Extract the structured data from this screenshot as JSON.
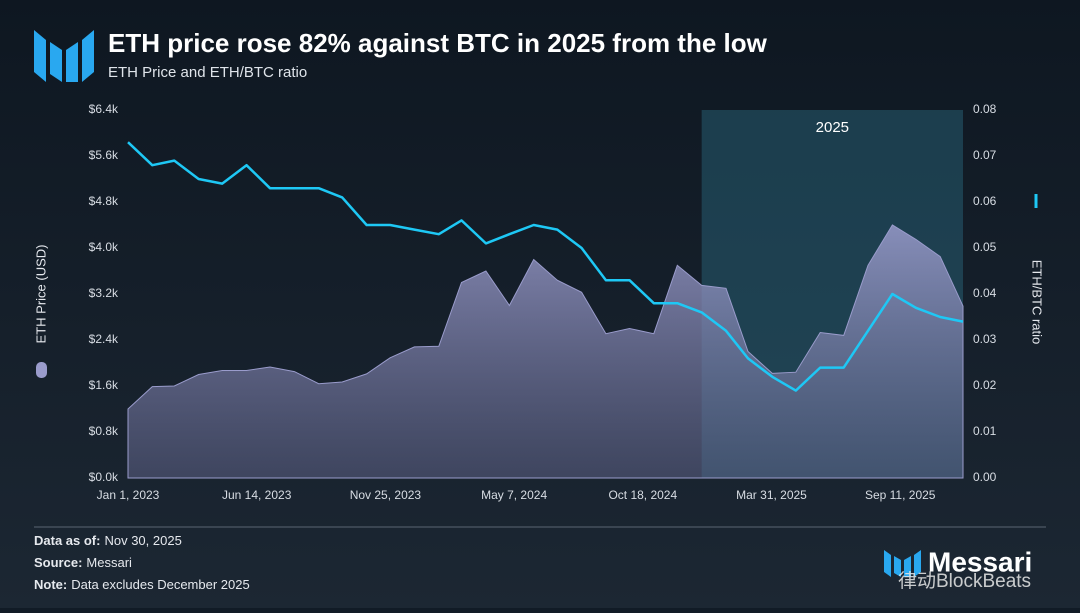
{
  "chart_data": {
    "type": "area-line",
    "title": "ETH price rose 82% against BTC in 2025 from the low",
    "subtitle": "ETH Price and ETH/BTC ratio",
    "x": [
      "2023-01-01",
      "2023-02-01",
      "2023-03-01",
      "2023-04-01",
      "2023-05-01",
      "2023-06-01",
      "2023-07-01",
      "2023-08-01",
      "2023-09-01",
      "2023-10-01",
      "2023-11-01",
      "2023-12-01",
      "2024-01-01",
      "2024-02-01",
      "2024-03-01",
      "2024-04-01",
      "2024-05-01",
      "2024-06-01",
      "2024-07-01",
      "2024-08-01",
      "2024-09-01",
      "2024-10-01",
      "2024-11-01",
      "2024-12-01",
      "2025-01-01",
      "2025-02-01",
      "2025-03-01",
      "2025-04-01",
      "2025-05-01",
      "2025-06-01",
      "2025-07-01",
      "2025-08-01",
      "2025-09-01",
      "2025-10-01",
      "2025-11-01",
      "2025-11-30"
    ],
    "series": [
      {
        "name": "ETH Price (USD)",
        "color": "#9a9ccc",
        "values": [
          1200,
          1590,
          1600,
          1800,
          1870,
          1870,
          1930,
          1850,
          1640,
          1670,
          1810,
          2090,
          2280,
          2290,
          3400,
          3600,
          3000,
          3800,
          3440,
          3230,
          2510,
          2600,
          2510,
          3700,
          3350,
          3300,
          2200,
          1820,
          1840,
          2530,
          2480,
          3700,
          4400,
          4150,
          3850,
          2990
        ]
      },
      {
        "name": "ETH/BTC ratio",
        "color": "#1ec8f5",
        "axis": "y2",
        "values": [
          0.073,
          0.068,
          0.069,
          0.065,
          0.064,
          0.068,
          0.063,
          0.063,
          0.063,
          0.061,
          0.055,
          0.055,
          0.054,
          0.053,
          0.056,
          0.051,
          0.053,
          0.055,
          0.054,
          0.05,
          0.043,
          0.043,
          0.038,
          0.038,
          0.036,
          0.032,
          0.026,
          0.022,
          0.019,
          0.024,
          0.024,
          0.032,
          0.04,
          0.037,
          0.035,
          0.034
        ]
      }
    ],
    "xlim": [
      "2023-01-01",
      "2025-11-30"
    ],
    "xticks": [
      {
        "value": "2023-01-01",
        "label": "Jan 1, 2023"
      },
      {
        "value": "2023-06-14",
        "label": "Jun 14, 2023"
      },
      {
        "value": "2023-11-25",
        "label": "Nov 25, 2023"
      },
      {
        "value": "2024-05-07",
        "label": "May 7, 2024"
      },
      {
        "value": "2024-10-18",
        "label": "Oct 18, 2024"
      },
      {
        "value": "2025-03-31",
        "label": "Mar 31, 2025"
      },
      {
        "value": "2025-09-11",
        "label": "Sep 11, 2025"
      }
    ],
    "ylim": [
      0,
      6400
    ],
    "yticks": [
      {
        "value": 0,
        "label": "$0.0k"
      },
      {
        "value": 800,
        "label": "$0.8k"
      },
      {
        "value": 1600,
        "label": "$1.6k"
      },
      {
        "value": 2400,
        "label": "$2.4k"
      },
      {
        "value": 3200,
        "label": "$3.2k"
      },
      {
        "value": 4000,
        "label": "$4.0k"
      },
      {
        "value": 4800,
        "label": "$4.8k"
      },
      {
        "value": 5600,
        "label": "$5.6k"
      },
      {
        "value": 6400,
        "label": "$6.4k"
      }
    ],
    "y2lim": [
      0,
      0.08
    ],
    "y2ticks": [
      {
        "value": 0,
        "label": "0.00"
      },
      0.01,
      0.02,
      0.03,
      0.04,
      0.05,
      0.06,
      0.07,
      0.08
    ],
    "highlight": {
      "start": "2025-01-01",
      "end": "2025-11-30",
      "label": "2025"
    },
    "footer": [
      {
        "key": "Data as of:",
        "text": "Nov 30, 2025"
      },
      {
        "key": "Source:",
        "text": "Messari"
      },
      {
        "key": "Note:",
        "text": "Data excludes December 2025"
      }
    ],
    "brand": "Messari",
    "watermark": "律动BlockBeats"
  }
}
